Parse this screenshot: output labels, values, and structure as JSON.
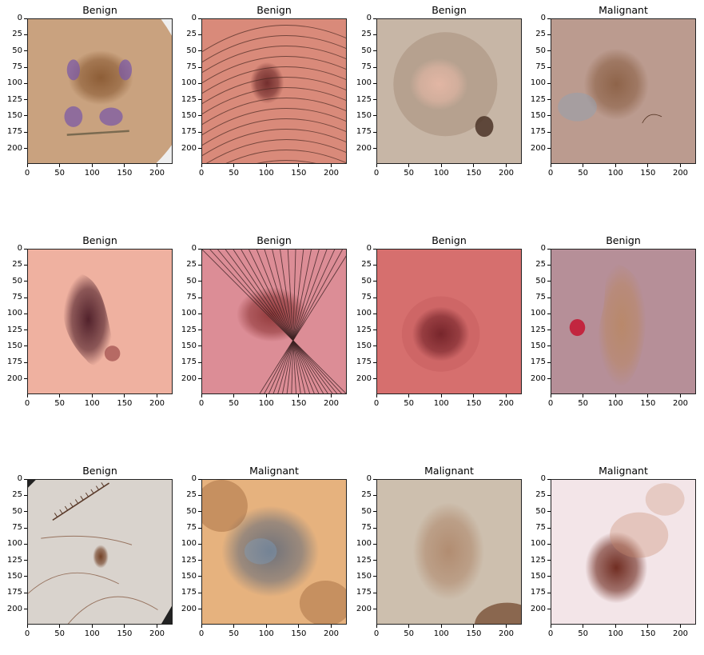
{
  "chart_data": [
    {
      "type": "image",
      "title": "Benign",
      "xlim": [
        0,
        224
      ],
      "ylim": [
        224,
        0
      ],
      "xticks": [
        0,
        50,
        100,
        150,
        200
      ],
      "yticks": [
        0,
        25,
        50,
        75,
        100,
        125,
        150,
        175,
        200
      ],
      "colors": {
        "skin": "#c9a27f",
        "lesion": "#8a5a33",
        "accent": "#7b5aa6"
      }
    },
    {
      "type": "image",
      "title": "Benign",
      "xlim": [
        0,
        224
      ],
      "ylim": [
        224,
        0
      ],
      "xticks": [
        0,
        50,
        100,
        150,
        200
      ],
      "yticks": [
        0,
        25,
        50,
        75,
        100,
        125,
        150,
        175,
        200
      ],
      "colors": {
        "skin": "#d98a7a",
        "lesion": "#6e2a2a",
        "accent": "#4a2a22"
      }
    },
    {
      "type": "image",
      "title": "Benign",
      "xlim": [
        0,
        224
      ],
      "ylim": [
        224,
        0
      ],
      "xticks": [
        0,
        50,
        100,
        150,
        200
      ],
      "yticks": [
        0,
        25,
        50,
        75,
        100,
        125,
        150,
        175,
        200
      ],
      "colors": {
        "skin": "#c7b6a6",
        "lesion": "#e4b7a5",
        "accent": "#4b3427"
      }
    },
    {
      "type": "image",
      "title": "Malignant",
      "xlim": [
        0,
        224
      ],
      "ylim": [
        224,
        0
      ],
      "xticks": [
        0,
        50,
        100,
        150,
        200
      ],
      "yticks": [
        0,
        25,
        50,
        75,
        100,
        125,
        150,
        175,
        200
      ],
      "colors": {
        "skin": "#bb9b8f",
        "lesion": "#8c6146",
        "accent": "#8ea2b6"
      }
    },
    {
      "type": "image",
      "title": "Benign",
      "xlim": [
        0,
        224
      ],
      "ylim": [
        224,
        0
      ],
      "xticks": [
        0,
        50,
        100,
        150,
        200
      ],
      "yticks": [
        0,
        25,
        50,
        75,
        100,
        125,
        150,
        175,
        200
      ],
      "colors": {
        "skin": "#efb1a0",
        "lesion": "#4a1b26",
        "accent": "#8f3b3c"
      }
    },
    {
      "type": "image",
      "title": "Benign",
      "xlim": [
        0,
        224
      ],
      "ylim": [
        224,
        0
      ],
      "xticks": [
        0,
        50,
        100,
        150,
        200
      ],
      "yticks": [
        0,
        25,
        50,
        75,
        100,
        125,
        150,
        175,
        200
      ],
      "colors": {
        "skin": "#dc8d96",
        "lesion": "#8f3637",
        "accent": "#3b2122"
      }
    },
    {
      "type": "image",
      "title": "Benign",
      "xlim": [
        0,
        224
      ],
      "ylim": [
        224,
        0
      ],
      "xticks": [
        0,
        50,
        100,
        150,
        200
      ],
      "yticks": [
        0,
        25,
        50,
        75,
        100,
        125,
        150,
        175,
        200
      ],
      "colors": {
        "skin": "#d66f6e",
        "lesion": "#6b1f25",
        "accent": "#a0393b"
      }
    },
    {
      "type": "image",
      "title": "Benign",
      "xlim": [
        0,
        224
      ],
      "ylim": [
        224,
        0
      ],
      "xticks": [
        0,
        50,
        100,
        150,
        200
      ],
      "yticks": [
        0,
        25,
        50,
        75,
        100,
        125,
        150,
        175,
        200
      ],
      "colors": {
        "skin": "#b68f98",
        "lesion": "#b98868",
        "accent": "#c2263f"
      }
    },
    {
      "type": "image",
      "title": "Benign",
      "xlim": [
        0,
        224
      ],
      "ylim": [
        224,
        0
      ],
      "xticks": [
        0,
        50,
        100,
        150,
        200
      ],
      "yticks": [
        0,
        25,
        50,
        75,
        100,
        125,
        150,
        175,
        200
      ],
      "colors": {
        "skin": "#d9d3cd",
        "lesion": "#6e3a1e",
        "accent": "#7a4a30"
      }
    },
    {
      "type": "image",
      "title": "Malignant",
      "xlim": [
        0,
        224
      ],
      "ylim": [
        224,
        0
      ],
      "xticks": [
        0,
        50,
        100,
        150,
        200
      ],
      "yticks": [
        0,
        25,
        50,
        75,
        100,
        125,
        150,
        175,
        200
      ],
      "colors": {
        "skin": "#e6b27e",
        "lesion": "#6a6f7a",
        "accent": "#8a5028"
      }
    },
    {
      "type": "image",
      "title": "Malignant",
      "xlim": [
        0,
        224
      ],
      "ylim": [
        224,
        0
      ],
      "xticks": [
        0,
        50,
        100,
        150,
        200
      ],
      "yticks": [
        0,
        25,
        50,
        75,
        100,
        125,
        150,
        175,
        200
      ],
      "colors": {
        "skin": "#cdbfae",
        "lesion": "#b08a6e",
        "accent": "#6d4226"
      }
    },
    {
      "type": "image",
      "title": "Malignant",
      "xlim": [
        0,
        224
      ],
      "ylim": [
        224,
        0
      ],
      "xticks": [
        0,
        50,
        100,
        150,
        200
      ],
      "yticks": [
        0,
        25,
        50,
        75,
        100,
        125,
        150,
        175,
        200
      ],
      "colors": {
        "skin": "#f3e5e8",
        "lesion": "#6a2418",
        "accent": "#c98a6e"
      }
    }
  ]
}
